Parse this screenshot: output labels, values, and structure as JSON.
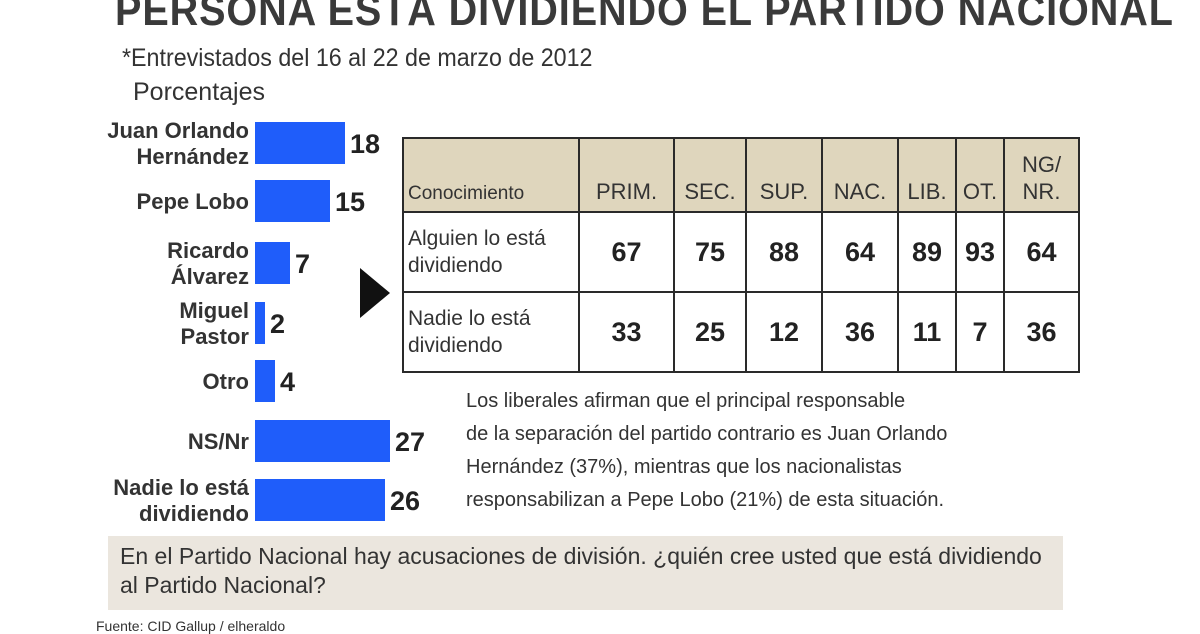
{
  "title": "PERSONA ESTÁ DIVIDIENDO EL PARTIDO NACIONAL",
  "subtitle": "*Entrevistados del 16 al 22 de marzo de 2012",
  "colors": {
    "bar": "#1f5dfa",
    "header_bg": "#dfd6bd",
    "question_bg": "#ebe6de"
  },
  "chart_data": {
    "type": "bar",
    "orientation": "horizontal",
    "unit_label": "Porcentajes",
    "categories": [
      [
        "Juan Orlando",
        "Hernández"
      ],
      [
        "Pepe Lobo"
      ],
      [
        "Ricardo",
        "Álvarez"
      ],
      [
        "Miguel",
        "Pastor"
      ],
      [
        "Otro"
      ],
      [
        "NS/Nr"
      ],
      [
        "Nadie lo está",
        "dividiendo"
      ]
    ],
    "values": [
      18,
      15,
      7,
      2,
      4,
      27,
      26
    ]
  },
  "table": {
    "headers": [
      "Conocimiento",
      "PRIM.",
      "SEC.",
      "SUP.",
      "NAC.",
      "LIB.",
      "OT.",
      "NG/\nNR."
    ],
    "rows": [
      {
        "label": "Alguien lo está\ndividiendo",
        "values": [
          "67",
          "75",
          "88",
          "64",
          "89",
          "93",
          "64"
        ]
      },
      {
        "label": "Nadie lo está\ndividiendo",
        "values": [
          "33",
          "25",
          "12",
          "36",
          "11",
          "7",
          "36"
        ]
      }
    ]
  },
  "note": "Los liberales afirman que el principal responsable\nde la separación del partido contrario es Juan Orlando\nHernández (37%), mientras que los nacionalistas\nresponsabilizan a Pepe Lobo (21%) de esta situación.",
  "question": "En el Partido Nacional hay acusaciones de división. ¿quién cree usted que está dividiendo al Partido Nacional?",
  "source": "Fuente: CID Gallup / elheraldo"
}
